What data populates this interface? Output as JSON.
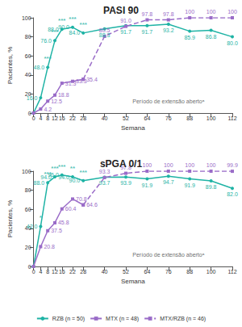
{
  "chart_data": [
    {
      "type": "line",
      "title": "PASI 90",
      "x_label": "Semana",
      "y_label": "Pacientes, %",
      "x": [
        0,
        4,
        8,
        12,
        16,
        22,
        28,
        40,
        52,
        64,
        76,
        88,
        100,
        112
      ],
      "xlim": [
        0,
        112
      ],
      "xticks": [
        0,
        4,
        8,
        12,
        16,
        22,
        28,
        40,
        52,
        64,
        76,
        88,
        100,
        112
      ],
      "ylim": [
        0,
        100
      ],
      "yticks": [
        0,
        20,
        40,
        60,
        80,
        100
      ],
      "grid": false,
      "data_labels": true,
      "series": [
        {
          "name": "RZB (n = 50)",
          "color": "#1fb3a5",
          "marker": "circle",
          "line_style": "solid",
          "values": [
            0,
            16.0,
            48.0,
            76.0,
            88.0,
            90.0,
            84.0,
            88.3,
            91.7,
            91.7,
            93.2,
            85.9,
            86.8,
            80.0
          ],
          "value_labels": [
            null,
            "16.0",
            "48.0",
            "76.0",
            "88.0",
            "90.0",
            "84.0",
            "88.3",
            "91.7",
            "91.7",
            "93.2",
            "85.9",
            "86.8",
            "80.0"
          ]
        },
        {
          "name": "MTX (n = 48)",
          "color": "#9a6cc8",
          "marker": "square",
          "line_style": "solid",
          "values": [
            0,
            4.2,
            12.5,
            18.8,
            31.3,
            33.3,
            35.4,
            null,
            null,
            null,
            null,
            null,
            null,
            null
          ],
          "value_labels": [
            null,
            "4.2",
            "12.5",
            "18.8",
            "31.3",
            "33.3",
            "35.4",
            null,
            null,
            null,
            null,
            null,
            null,
            null
          ]
        },
        {
          "name": "MTX/RZB (n = 46)",
          "color": "#9a6cc8",
          "marker": "square",
          "line_style": "dashed",
          "values": [
            null,
            null,
            null,
            null,
            null,
            null,
            35.4,
            80.5,
            91.0,
            97.8,
            97.8,
            100,
            100,
            100
          ],
          "value_labels": [
            null,
            null,
            null,
            null,
            null,
            null,
            null,
            "80.5",
            "91.0",
            "97.8",
            "97.8",
            "100",
            "100",
            "100"
          ]
        }
      ],
      "annotations": [
        {
          "x": 8,
          "y": 57,
          "text": "***"
        },
        {
          "x": 12,
          "y": 85,
          "text": "***"
        },
        {
          "x": 16,
          "y": 97,
          "text": "***"
        },
        {
          "x": 22,
          "y": 99,
          "text": "***"
        },
        {
          "x": 28,
          "y": 93,
          "text": "***"
        },
        {
          "x": 76,
          "y": 12,
          "text": "Período de extensão abertoᵃ"
        }
      ]
    },
    {
      "type": "line",
      "title": "sPGA 0/1",
      "x_label": "Semana",
      "y_label": "Pacientes, %",
      "x": [
        0,
        4,
        8,
        12,
        16,
        22,
        28,
        40,
        52,
        64,
        76,
        88,
        100,
        112
      ],
      "xlim": [
        0,
        112
      ],
      "xticks": [
        0,
        4,
        8,
        12,
        16,
        22,
        28,
        40,
        52,
        64,
        76,
        88,
        100,
        112
      ],
      "ylim": [
        0,
        100
      ],
      "yticks": [
        0,
        20,
        40,
        60,
        80,
        100
      ],
      "grid": false,
      "data_labels": true,
      "legend": "bottom",
      "series": [
        {
          "name": "RZB (n = 50)",
          "color": "#1fb3a5",
          "marker": "circle",
          "line_style": "solid",
          "values": [
            0,
            42.0,
            88.0,
            94.0,
            96.0,
            94.0,
            90.0,
            93.7,
            93.9,
            91.9,
            94.7,
            91.9,
            89.8,
            82.0
          ],
          "value_labels": [
            null,
            "42.0",
            "88.0",
            "94.0",
            "96.0",
            "94.0",
            "90.0",
            "93.7",
            "93.9",
            "91.9",
            "94.7",
            "91.9",
            "89.8",
            "82.0"
          ]
        },
        {
          "name": "MTX (n = 48)",
          "color": "#9a6cc8",
          "marker": "square",
          "line_style": "solid",
          "values": [
            0,
            20.8,
            37.5,
            45.8,
            60.4,
            70.8,
            64.6,
            null,
            null,
            null,
            null,
            null,
            null,
            null
          ],
          "value_labels": [
            null,
            "20.8",
            "37.5",
            "45.8",
            "60.4",
            "70.8",
            "64.6",
            null,
            null,
            null,
            null,
            null,
            null,
            null
          ]
        },
        {
          "name": "MTX/RZB (n = 46)",
          "color": "#9a6cc8",
          "marker": "square",
          "line_style": "dashed",
          "values": [
            null,
            null,
            null,
            null,
            null,
            null,
            64.6,
            93.3,
            97.8,
            100,
            100,
            100,
            100,
            99.9
          ],
          "value_labels": [
            null,
            null,
            null,
            null,
            null,
            null,
            null,
            "93.3",
            "97.8",
            "100",
            "100",
            "100",
            "100",
            "99.9"
          ]
        }
      ],
      "annotations": [
        {
          "x": 4,
          "y": 51,
          "text": "*"
        },
        {
          "x": 8,
          "y": 97,
          "text": "***"
        },
        {
          "x": 12,
          "y": 103,
          "text": "***"
        },
        {
          "x": 16,
          "y": 105,
          "text": "***"
        },
        {
          "x": 22,
          "y": 103,
          "text": "**"
        },
        {
          "x": 28,
          "y": 99,
          "text": "***"
        },
        {
          "x": 76,
          "y": 12,
          "text": "Período de extensão abertoᵃ"
        }
      ]
    }
  ]
}
